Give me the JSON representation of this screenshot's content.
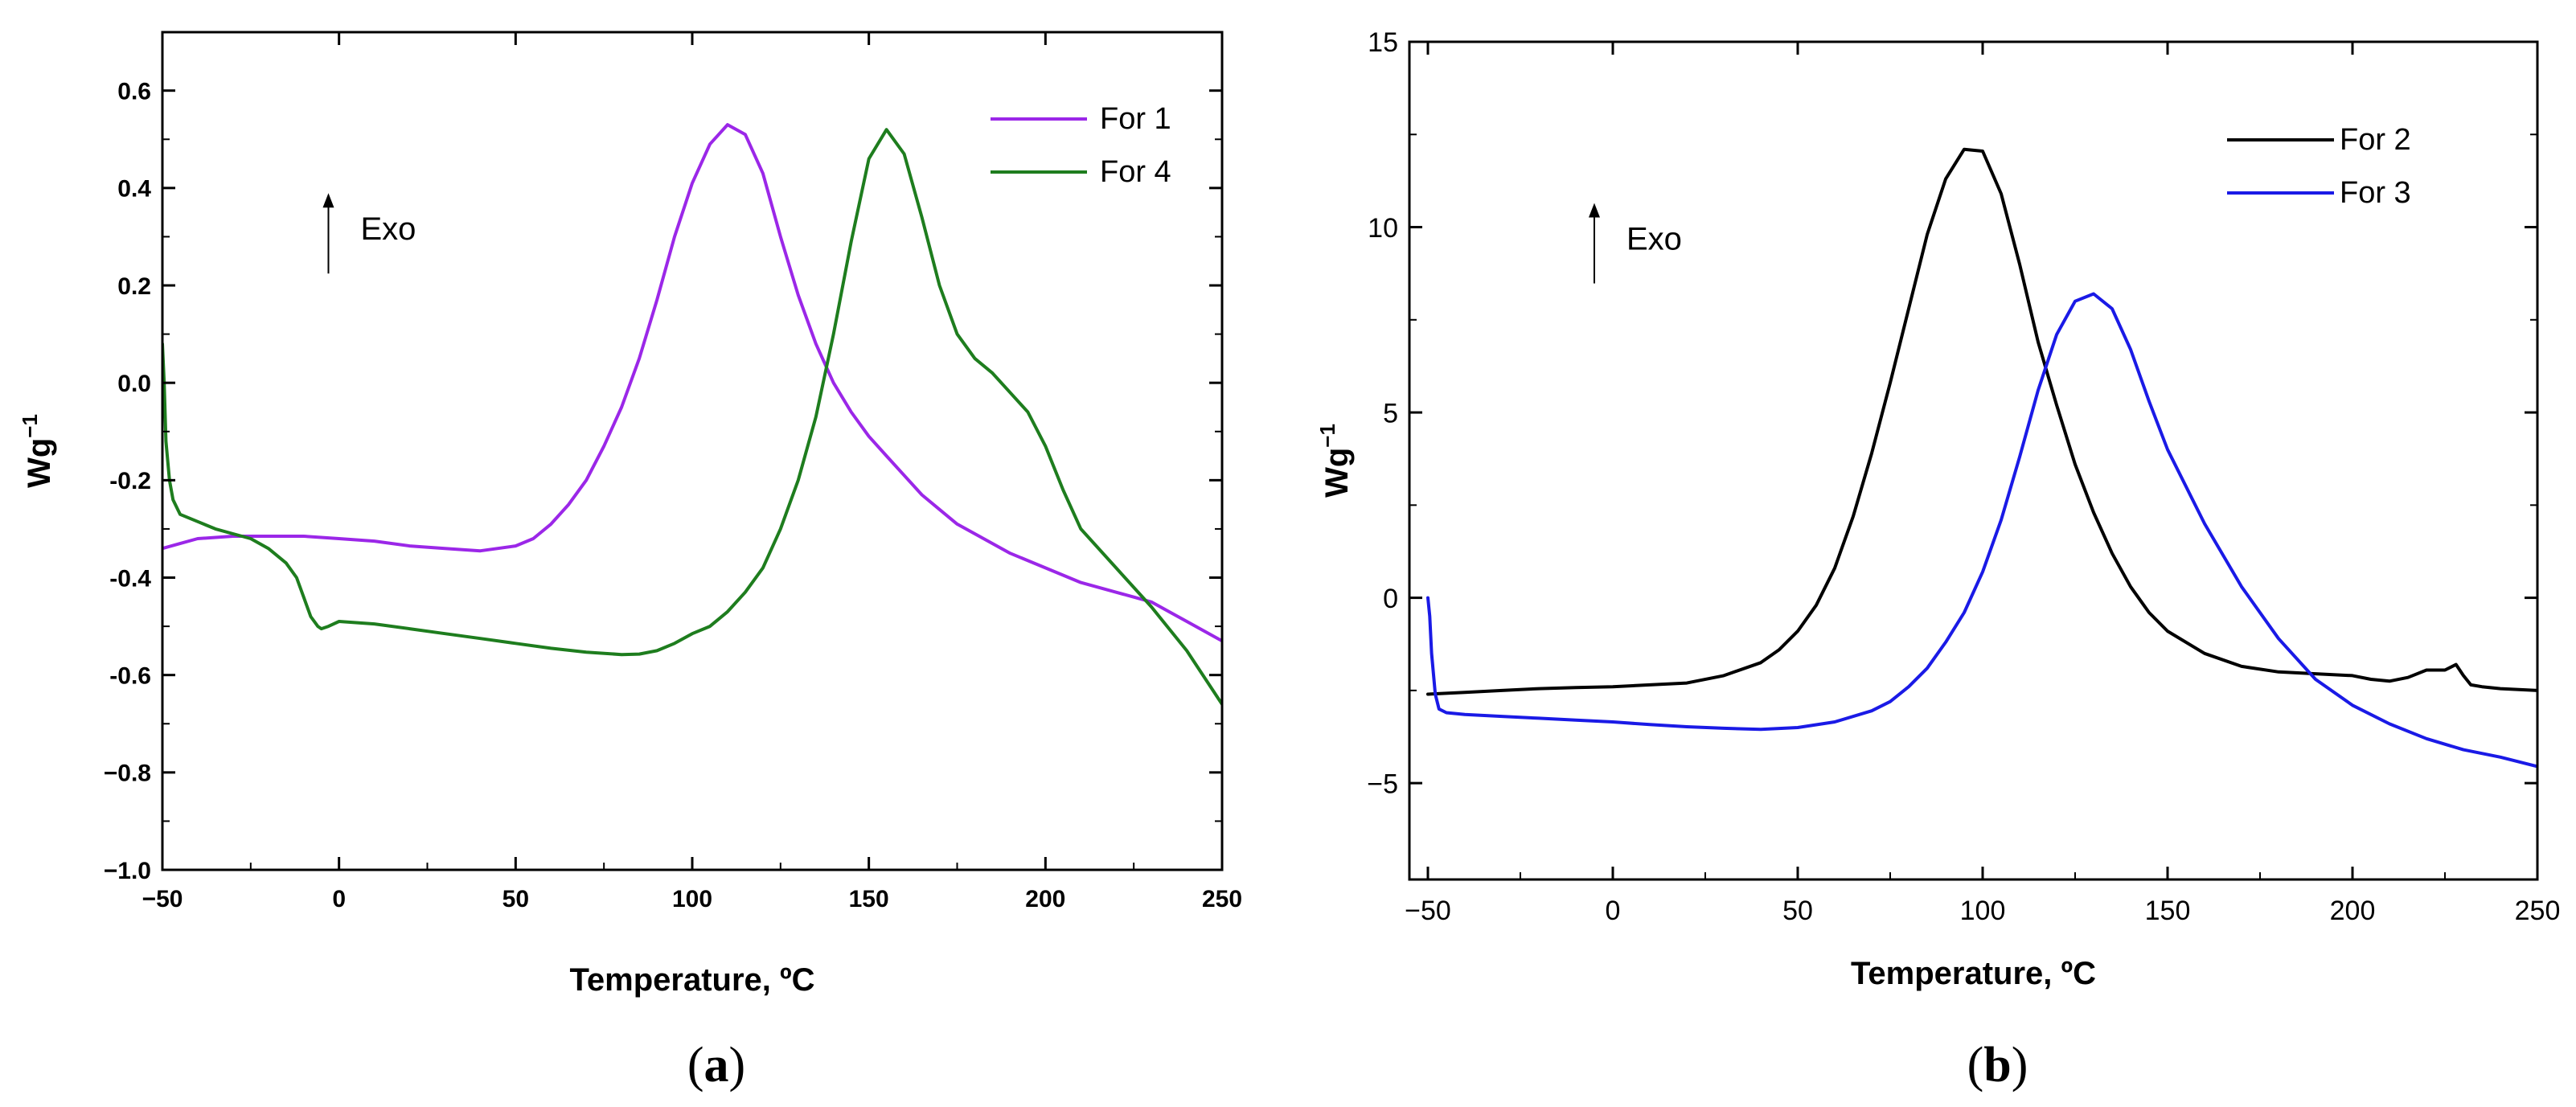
{
  "chart_data": [
    {
      "id": "a",
      "type": "line",
      "caption_open": "(",
      "caption_letter": "a",
      "caption_close": ")",
      "xlabel": "Temperature, ºC",
      "ylabel": "Wg",
      "ylabel_sup": "−1",
      "xlim": [
        -50,
        250
      ],
      "ylim": [
        -1.0,
        0.72
      ],
      "xticks": [
        -50,
        0,
        50,
        100,
        150,
        200,
        250
      ],
      "xtick_labels": [
        "−50",
        "0",
        "50",
        "100",
        "150",
        "200",
        "250"
      ],
      "yticks": [
        0.6,
        0.4,
        0.2,
        0.0,
        -0.2,
        -0.4,
        -0.6,
        -0.8,
        -1.0
      ],
      "ytick_labels": [
        "0.6",
        "0.4",
        "0.2",
        "0.0",
        "-0.2",
        "-0.4",
        "-0.6",
        "−0.8",
        "−1.0"
      ],
      "annotation": "Exo",
      "annotation_at": [
        -3,
        0.34
      ],
      "legend_position": "top-right",
      "series": [
        {
          "name": "For 1",
          "color": "#9b27e8",
          "x": [
            -50,
            -45,
            -40,
            -30,
            -20,
            -10,
            0,
            10,
            20,
            30,
            40,
            50,
            55,
            60,
            65,
            70,
            75,
            80,
            85,
            90,
            95,
            100,
            105,
            110,
            115,
            120,
            125,
            130,
            135,
            140,
            145,
            150,
            155,
            160,
            165,
            170,
            175,
            180,
            190,
            200,
            210,
            220,
            225,
            230,
            240,
            250
          ],
          "y": [
            -0.34,
            -0.33,
            -0.32,
            -0.315,
            -0.315,
            -0.315,
            -0.32,
            -0.325,
            -0.335,
            -0.34,
            -0.345,
            -0.335,
            -0.32,
            -0.29,
            -0.25,
            -0.2,
            -0.13,
            -0.05,
            0.05,
            0.17,
            0.3,
            0.41,
            0.49,
            0.53,
            0.51,
            0.43,
            0.3,
            0.18,
            0.08,
            0.0,
            -0.06,
            -0.11,
            -0.15,
            -0.19,
            -0.23,
            -0.26,
            -0.29,
            -0.31,
            -0.35,
            -0.38,
            -0.41,
            -0.43,
            -0.44,
            -0.45,
            -0.49,
            -0.53
          ]
        },
        {
          "name": "For 4",
          "color": "#1e7d1e",
          "x": [
            -50,
            -49.5,
            -49,
            -48,
            -47,
            -45,
            -40,
            -35,
            -30,
            -25,
            -20,
            -15,
            -12,
            -10,
            -8,
            -6,
            -5,
            -3,
            0,
            10,
            20,
            30,
            40,
            50,
            60,
            70,
            80,
            85,
            90,
            95,
            100,
            105,
            110,
            115,
            120,
            125,
            130,
            135,
            140,
            145,
            150,
            155,
            160,
            165,
            170,
            175,
            180,
            185,
            190,
            195,
            200,
            205,
            210,
            220,
            230,
            240,
            250
          ],
          "y": [
            0.08,
            0.0,
            -0.12,
            -0.2,
            -0.24,
            -0.27,
            -0.285,
            -0.3,
            -0.31,
            -0.32,
            -0.34,
            -0.37,
            -0.4,
            -0.44,
            -0.48,
            -0.5,
            -0.505,
            -0.5,
            -0.49,
            -0.495,
            -0.505,
            -0.515,
            -0.525,
            -0.535,
            -0.545,
            -0.553,
            -0.558,
            -0.557,
            -0.55,
            -0.535,
            -0.515,
            -0.5,
            -0.47,
            -0.43,
            -0.38,
            -0.3,
            -0.2,
            -0.07,
            0.1,
            0.29,
            0.46,
            0.52,
            0.47,
            0.34,
            0.2,
            0.1,
            0.05,
            0.02,
            -0.02,
            -0.06,
            -0.13,
            -0.22,
            -0.3,
            -0.38,
            -0.46,
            -0.55,
            -0.66
          ]
        }
      ]
    },
    {
      "id": "b",
      "type": "line",
      "caption_open": "(",
      "caption_letter": "b",
      "caption_close": ")",
      "xlabel": "Temperature, ºC",
      "ylabel": "Wg",
      "ylabel_sup": "−1",
      "xlim": [
        -55,
        250
      ],
      "ylim": [
        -7.6,
        15
      ],
      "xticks": [
        -50,
        0,
        50,
        100,
        150,
        200,
        250
      ],
      "xtick_labels": [
        "−50",
        "0",
        "50",
        "100",
        "150",
        "200",
        "250"
      ],
      "yticks": [
        15,
        10,
        5,
        0,
        -5
      ],
      "ytick_labels": [
        "15",
        "10",
        "5",
        "0",
        "−5"
      ],
      "annotation": "Exo",
      "annotation_at": [
        -5,
        10.0
      ],
      "legend_position": "top-right",
      "series": [
        {
          "name": "For 2",
          "color": "#000000",
          "x": [
            -50,
            -40,
            -30,
            -20,
            -10,
            0,
            10,
            20,
            30,
            40,
            45,
            50,
            55,
            60,
            65,
            70,
            75,
            80,
            85,
            90,
            95,
            100,
            105,
            110,
            115,
            120,
            125,
            130,
            135,
            140,
            145,
            150,
            160,
            170,
            180,
            190,
            200,
            205,
            210,
            215,
            220,
            225,
            228,
            230,
            232,
            235,
            240,
            250
          ],
          "y": [
            -2.6,
            -2.55,
            -2.5,
            -2.45,
            -2.42,
            -2.4,
            -2.35,
            -2.3,
            -2.1,
            -1.75,
            -1.4,
            -0.9,
            -0.2,
            0.8,
            2.2,
            3.9,
            5.8,
            7.8,
            9.8,
            11.3,
            12.1,
            12.05,
            10.9,
            9.0,
            6.9,
            5.2,
            3.6,
            2.3,
            1.2,
            0.3,
            -0.4,
            -0.9,
            -1.5,
            -1.85,
            -2.0,
            -2.05,
            -2.1,
            -2.2,
            -2.25,
            -2.15,
            -1.95,
            -1.95,
            -1.8,
            -2.1,
            -2.35,
            -2.4,
            -2.45,
            -2.5
          ]
        },
        {
          "name": "For 3",
          "color": "#1a1ae6",
          "x": [
            -50,
            -49.5,
            -49,
            -48,
            -47,
            -45,
            -40,
            -30,
            -20,
            -10,
            0,
            10,
            20,
            30,
            40,
            50,
            60,
            70,
            75,
            80,
            85,
            90,
            95,
            100,
            105,
            110,
            115,
            120,
            125,
            130,
            135,
            140,
            145,
            150,
            160,
            170,
            180,
            190,
            200,
            210,
            220,
            230,
            240,
            250
          ],
          "y": [
            0.0,
            -0.5,
            -1.5,
            -2.6,
            -3.0,
            -3.1,
            -3.15,
            -3.2,
            -3.25,
            -3.3,
            -3.35,
            -3.42,
            -3.48,
            -3.52,
            -3.55,
            -3.5,
            -3.35,
            -3.05,
            -2.8,
            -2.4,
            -1.9,
            -1.2,
            -0.4,
            0.7,
            2.1,
            3.8,
            5.6,
            7.1,
            8.0,
            8.2,
            7.8,
            6.7,
            5.3,
            4.0,
            2.0,
            0.3,
            -1.1,
            -2.2,
            -2.9,
            -3.4,
            -3.8,
            -4.1,
            -4.3,
            -4.55
          ]
        }
      ]
    }
  ]
}
